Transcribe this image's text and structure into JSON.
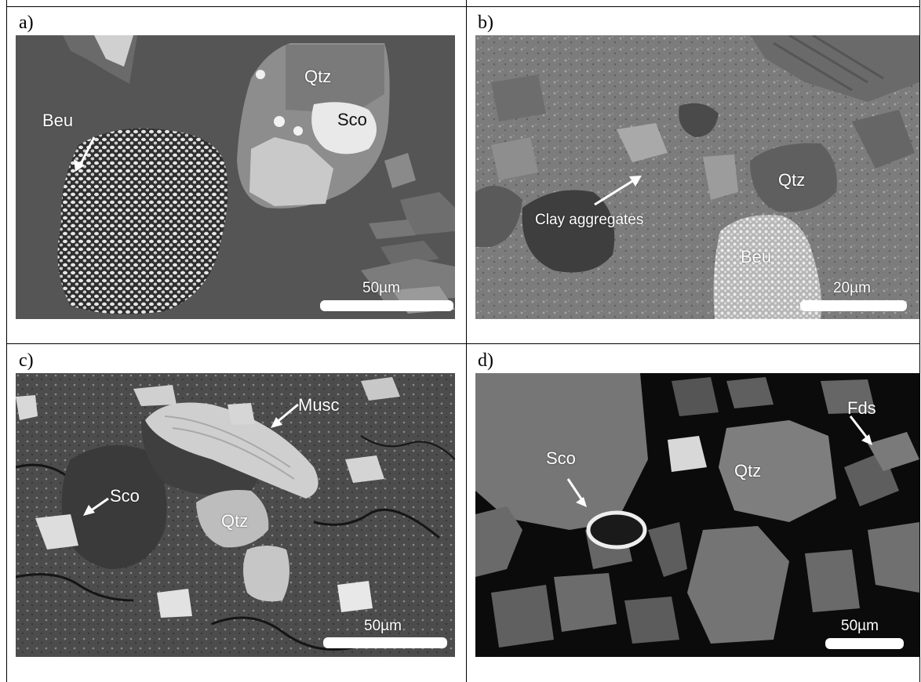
{
  "panels": [
    {
      "letter": "a)",
      "labels": {
        "beu": "Beu",
        "qtz": "Qtz",
        "sco": "Sco"
      },
      "scale": "50µm"
    },
    {
      "letter": "b)",
      "labels": {
        "qtz": "Qtz",
        "clay": "Clay aggregates",
        "beu": "Beu"
      },
      "scale": "20µm"
    },
    {
      "letter": "c)",
      "labels": {
        "musc": "Musc",
        "sco": "Sco",
        "qtz": "Qtz"
      },
      "scale": "50µm"
    },
    {
      "letter": "d)",
      "labels": {
        "fds": "Fds",
        "sco": "Sco",
        "qtz": "Qtz"
      },
      "scale": "50µm"
    }
  ],
  "colors": {
    "panel_a_bg": "#555555",
    "panel_b_bg": "#7a7a7a",
    "panel_c_bg": "#4a4a4a",
    "panel_d_bg": "#0a0a0a"
  }
}
